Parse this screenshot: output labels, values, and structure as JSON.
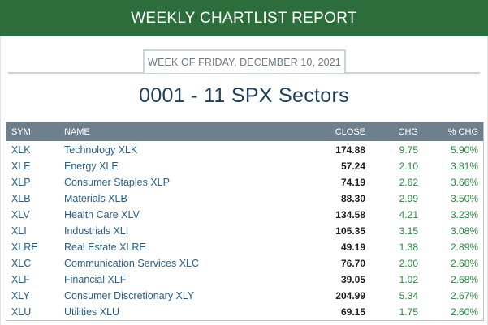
{
  "banner": {
    "title": "WEEKLY CHARTLIST REPORT",
    "background": "#2d6d3c"
  },
  "report": {
    "week_label": "WEEK OF FRIDAY, DECEMBER 10, 2021"
  },
  "list": {
    "title": "0001 - 11 SPX Sectors"
  },
  "table": {
    "headers": {
      "sym": "SYM",
      "name": "NAME",
      "close": "CLOSE",
      "chg": "CHG",
      "pct_chg": "% CHG"
    },
    "rows": [
      {
        "sym": "XLK",
        "name": "Technology XLK",
        "close": "174.88",
        "chg": "9.75",
        "pct_chg": "5.90%"
      },
      {
        "sym": "XLE",
        "name": "Energy XLE",
        "close": "57.24",
        "chg": "2.10",
        "pct_chg": "3.81%"
      },
      {
        "sym": "XLP",
        "name": "Consumer Staples XLP",
        "close": "74.19",
        "chg": "2.62",
        "pct_chg": "3.66%"
      },
      {
        "sym": "XLB",
        "name": "Materials XLB",
        "close": "88.30",
        "chg": "2.99",
        "pct_chg": "3.50%"
      },
      {
        "sym": "XLV",
        "name": "Health Care XLV",
        "close": "134.58",
        "chg": "4.21",
        "pct_chg": "3.23%"
      },
      {
        "sym": "XLI",
        "name": "Industrials XLI",
        "close": "105.35",
        "chg": "3.15",
        "pct_chg": "3.08%"
      },
      {
        "sym": "XLRE",
        "name": "Real Estate XLRE",
        "close": "49.19",
        "chg": "1.38",
        "pct_chg": "2.89%"
      },
      {
        "sym": "XLC",
        "name": "Communication Services XLC",
        "close": "76.70",
        "chg": "2.00",
        "pct_chg": "2.68%"
      },
      {
        "sym": "XLF",
        "name": "Financial XLF",
        "close": "39.05",
        "chg": "1.02",
        "pct_chg": "2.68%"
      },
      {
        "sym": "XLY",
        "name": "Consumer Discretionary XLY",
        "close": "204.99",
        "chg": "5.34",
        "pct_chg": "2.67%"
      },
      {
        "sym": "XLU",
        "name": "Utilities XLU",
        "close": "69.15",
        "chg": "1.75",
        "pct_chg": "2.60%"
      }
    ]
  },
  "colors": {
    "positive": "#27853a",
    "header_bg": "#6e7f8e",
    "link": "#2a5d86"
  }
}
